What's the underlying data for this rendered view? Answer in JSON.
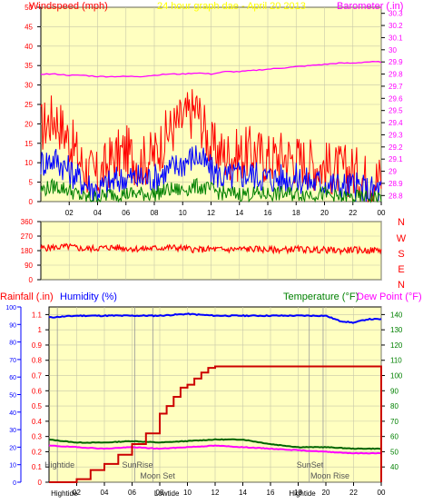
{
  "title": "24 hour graph dae - April 20 2013",
  "colors": {
    "panel_bg": "#ffffc0",
    "outer_bg": "#ffffff",
    "frame": "#000000",
    "grid": "#c8c8a8",
    "wind": "#ff0000",
    "wind_mid": "#0000ff",
    "wind_low": "#008000",
    "barometer": "#ff00ff",
    "rain": "#cc0000",
    "humidity": "#0000ff",
    "temperature": "#006400",
    "dewpoint": "#ff00ff",
    "label_wind": "#ff0000",
    "label_title": "#ffff00",
    "label_baro": "#ff00ff",
    "label_rain": "#ff0000",
    "label_hum": "#0000ff",
    "label_temp": "#008000",
    "label_dew": "#ff00ff",
    "dir_letters": "#ff0000"
  },
  "labels": {
    "windspeed": "Windspeed (mph)",
    "barometer": "Barometer (.in)",
    "rainfall": "Rainfall (.in)",
    "humidity": "Humidity (%)",
    "temperature": "Temperature (°F)",
    "dewpoint": "Dew Point (°F)"
  },
  "direction_letters": [
    "N",
    "W",
    "S",
    "E",
    "N"
  ],
  "time_ticks": [
    "02",
    "04",
    "06",
    "08",
    "10",
    "12",
    "14",
    "16",
    "18",
    "20",
    "22",
    "00"
  ],
  "events": [
    {
      "label": "Hightide",
      "row": "upper"
    },
    {
      "label": "SunRise",
      "row": "upper"
    },
    {
      "label": "Moon Set",
      "row": "mid"
    },
    {
      "label": "SunSet",
      "row": "upper"
    },
    {
      "label": "Moon Rise",
      "row": "mid"
    }
  ],
  "bottom_events": [
    "Hightide",
    "Lowtide",
    "Hightide"
  ],
  "chart_data": [
    {
      "type": "line",
      "name": "wind_and_barometer",
      "x_ticks": [
        "02",
        "04",
        "06",
        "08",
        "10",
        "12",
        "14",
        "16",
        "18",
        "20",
        "22",
        "00"
      ],
      "left_axis": {
        "label": "Windspeed (mph)",
        "ticks": [
          0,
          5,
          10,
          15,
          20,
          25,
          30,
          35,
          40,
          45,
          50
        ],
        "ylim": [
          0,
          50
        ]
      },
      "right_axis": {
        "label": "Barometer (.in)",
        "ticks": [
          "28.8",
          "28.9",
          "29",
          "29.1",
          "29.2",
          "29.3",
          "29.4",
          "29.5",
          "29.6",
          "29.7",
          "29.8",
          "29.9",
          "30",
          "30.1",
          "30.2",
          "30.3"
        ],
        "ylim": [
          28.75,
          30.35
        ]
      },
      "series": [
        {
          "name": "gust",
          "color": "#ff0000",
          "hours": [
            0,
            1,
            2,
            3,
            4,
            5,
            6,
            7,
            8,
            9,
            10,
            11,
            12,
            13,
            14,
            15,
            16,
            17,
            18,
            19,
            20,
            21,
            22,
            23,
            24
          ],
          "values": [
            19,
            22,
            16,
            9,
            6,
            11,
            13,
            10,
            12,
            18,
            21,
            24,
            14,
            12,
            12,
            13,
            11,
            12,
            11,
            10,
            9,
            8,
            8,
            6,
            6
          ]
        },
        {
          "name": "speed",
          "color": "#0000ff",
          "hours": [
            0,
            1,
            2,
            3,
            4,
            5,
            6,
            7,
            8,
            9,
            10,
            11,
            12,
            13,
            14,
            15,
            16,
            17,
            18,
            19,
            20,
            21,
            22,
            23,
            24
          ],
          "values": [
            10,
            11,
            8,
            5,
            3,
            5,
            6,
            6,
            6,
            8,
            10,
            12,
            8,
            6,
            7,
            7,
            6,
            6,
            6,
            5,
            5,
            4,
            4,
            3,
            3
          ]
        },
        {
          "name": "min",
          "color": "#008000",
          "hours": [
            0,
            1,
            2,
            3,
            4,
            5,
            6,
            7,
            8,
            9,
            10,
            11,
            12,
            13,
            14,
            15,
            16,
            17,
            18,
            19,
            20,
            21,
            22,
            23,
            24
          ],
          "values": [
            3,
            4,
            3,
            1,
            1,
            2,
            2,
            2,
            2,
            3,
            3,
            4,
            3,
            2,
            2,
            2,
            2,
            2,
            2,
            2,
            2,
            1,
            1,
            1,
            1
          ]
        },
        {
          "name": "barometer",
          "color": "#ff00ff",
          "hours": [
            0,
            1,
            2,
            3,
            4,
            5,
            6,
            7,
            8,
            9,
            10,
            11,
            12,
            13,
            14,
            15,
            16,
            17,
            18,
            19,
            20,
            21,
            22,
            23,
            24
          ],
          "values": [
            29.8,
            29.8,
            29.79,
            29.79,
            29.78,
            29.78,
            29.78,
            29.78,
            29.79,
            29.8,
            29.8,
            29.81,
            29.8,
            29.82,
            29.82,
            29.83,
            29.84,
            29.85,
            29.86,
            29.87,
            29.88,
            29.89,
            29.89,
            29.9,
            29.9
          ]
        }
      ]
    },
    {
      "type": "line",
      "name": "wind_direction",
      "left_axis": {
        "ticks": [
          "0",
          "90",
          "180",
          "270",
          "360"
        ],
        "ylim": [
          0,
          360
        ]
      },
      "right_axis": {
        "ticks": [
          "N",
          "E",
          "S",
          "W",
          "N"
        ]
      },
      "series": [
        {
          "name": "direction",
          "color": "#ff0000",
          "hours": [
            0,
            1,
            2,
            3,
            4,
            5,
            6,
            7,
            8,
            9,
            10,
            11,
            12,
            13,
            14,
            15,
            16,
            17,
            18,
            19,
            20,
            21,
            22,
            23,
            24
          ],
          "values": [
            195,
            200,
            205,
            190,
            195,
            200,
            195,
            190,
            195,
            200,
            195,
            185,
            190,
            185,
            190,
            190,
            185,
            185,
            190,
            185,
            185,
            180,
            185,
            180,
            185
          ]
        }
      ]
    },
    {
      "type": "line",
      "name": "rain_humidity_temperature",
      "x_ticks": [
        "02",
        "04",
        "06",
        "08",
        "10",
        "12",
        "14",
        "16",
        "18",
        "20",
        "22",
        "00"
      ],
      "left_axis_outer": {
        "label": "Humidity (%)",
        "ticks": [
          0,
          10,
          20,
          30,
          40,
          50,
          60,
          70,
          80,
          90,
          100
        ],
        "ylim": [
          0,
          100
        ]
      },
      "left_axis_inner": {
        "label": "Rainfall (.in)",
        "ticks": [
          "0",
          "0.1",
          "0.2",
          "0.3",
          "0.4",
          "0.5",
          "0.6",
          "0.7",
          "0.8",
          "0.9",
          "1",
          "1.1"
        ],
        "ylim": [
          0,
          1.15
        ]
      },
      "right_axis": {
        "label": "Temperature (°F) / Dew Point (°F)",
        "ticks": [
          40,
          50,
          60,
          70,
          80,
          90,
          100,
          110,
          120,
          130,
          140
        ],
        "ylim": [
          30,
          145
        ]
      },
      "series": [
        {
          "name": "humidity",
          "color": "#0000ff",
          "hours": [
            0,
            2,
            4,
            6,
            8,
            10,
            12,
            14,
            16,
            18,
            20,
            21,
            22,
            23,
            24
          ],
          "values": [
            94,
            95,
            95,
            95,
            95,
            96,
            95,
            95,
            95,
            95,
            95,
            92,
            91,
            93,
            93
          ]
        },
        {
          "name": "rainfall",
          "color": "#cc0000",
          "hours": [
            0,
            1,
            2,
            3,
            4,
            5,
            6,
            7,
            8,
            8.5,
            9,
            9.5,
            10,
            10.5,
            11,
            11.5,
            12,
            13,
            14,
            15,
            16,
            17,
            18,
            19,
            20,
            21,
            22,
            23,
            23.9,
            24
          ],
          "values": [
            0,
            0,
            0.02,
            0.08,
            0.12,
            0.18,
            0.25,
            0.32,
            0.45,
            0.5,
            0.56,
            0.62,
            0.64,
            0.68,
            0.72,
            0.75,
            0.76,
            0.76,
            0.76,
            0.76,
            0.76,
            0.76,
            0.76,
            0.76,
            0.76,
            0.76,
            0.76,
            0.76,
            0.76,
            0
          ]
        },
        {
          "name": "temperature",
          "color": "#006400",
          "hours": [
            0,
            2,
            4,
            6,
            8,
            10,
            12,
            14,
            16,
            18,
            20,
            22,
            24
          ],
          "values": [
            58,
            56,
            56,
            57,
            56,
            57,
            58,
            58,
            55,
            53,
            53,
            52,
            52
          ]
        },
        {
          "name": "dewpoint",
          "color": "#ff00ff",
          "hours": [
            0,
            2,
            4,
            6,
            8,
            10,
            12,
            14,
            16,
            18,
            20,
            22,
            24
          ],
          "values": [
            54,
            53,
            52,
            53,
            52,
            53,
            54,
            53,
            52,
            51,
            50,
            49,
            49
          ]
        }
      ]
    }
  ]
}
